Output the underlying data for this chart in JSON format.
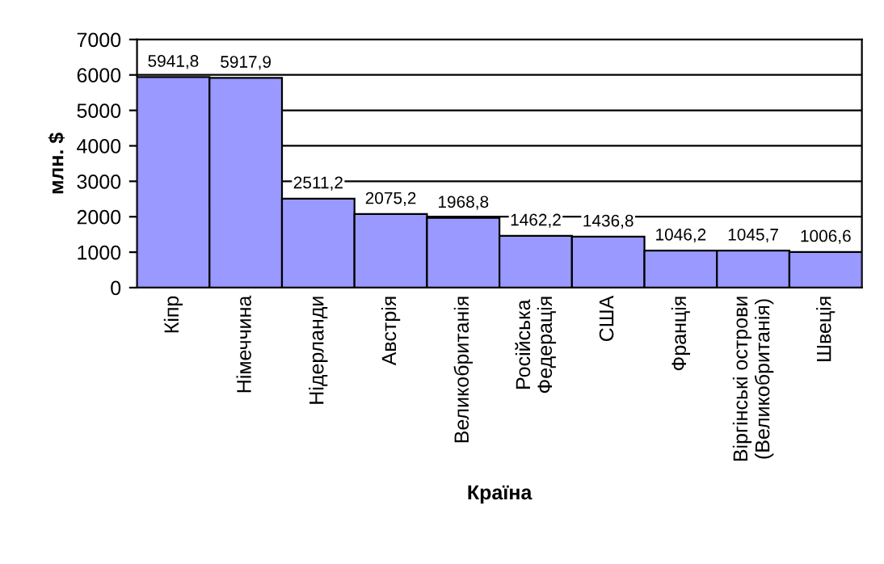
{
  "chart_data": {
    "type": "bar",
    "xlabel": "Країна",
    "ylabel": "млн. $",
    "categories": [
      "Кіпр",
      "Німеччина",
      "Нідерланди",
      "Австрія",
      "Великобританія",
      "Російська\nФедерація",
      "США",
      "Франція",
      "Віргінські острови\n(Великобританія)",
      "Швеція"
    ],
    "values": [
      5941.8,
      5917.9,
      2511.2,
      2075.2,
      1968.8,
      1462.2,
      1436.8,
      1046.2,
      1045.7,
      1006.6
    ],
    "value_labels": [
      "5941,8",
      "5917,9",
      "2511,2",
      "2075,2",
      "1968,8",
      "1462,2",
      "1436,8",
      "1046,2",
      "1045,7",
      "1006,6"
    ],
    "color": "#9999ff",
    "ylim": [
      0,
      7000
    ],
    "yticks": [
      0,
      1000,
      2000,
      3000,
      4000,
      5000,
      6000,
      7000
    ],
    "grid": "y",
    "legend": false
  }
}
